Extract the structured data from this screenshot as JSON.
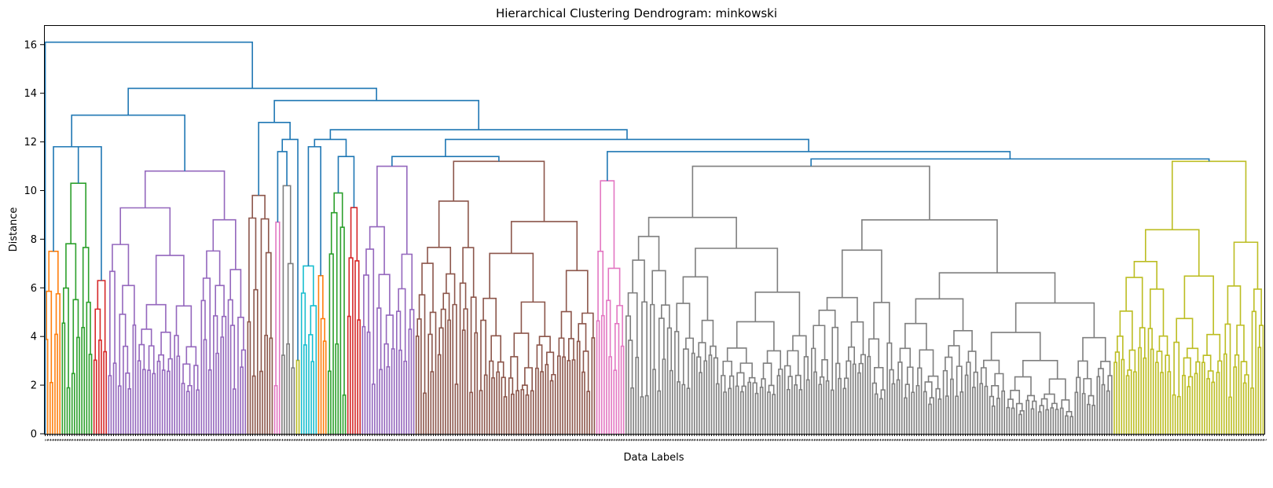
{
  "chart_data": {
    "type": "dendrogram",
    "title": "Hierarchical  Clustering Dendrogram: minkowski",
    "xlabel": "Data Labels",
    "ylabel": "Distance",
    "ylim": [
      0,
      16.8
    ],
    "yticks": [
      0,
      2,
      4,
      6,
      8,
      10,
      12,
      14,
      16
    ],
    "leaf_count": 500,
    "leaf_label_sample": "1",
    "link_color_default": "#1f77b4",
    "top_merges": [
      {
        "height": 16.1,
        "description": "root"
      },
      {
        "height": 14.2
      },
      {
        "height": 13.7
      },
      {
        "height": 13.3
      },
      {
        "height": 13.1
      },
      {
        "height": 12.5
      },
      {
        "height": 12.1
      },
      {
        "height": 11.8
      },
      {
        "height": 11.6
      },
      {
        "height": 11.4
      },
      {
        "height": 11.3
      }
    ],
    "clusters": [
      {
        "color": "#ff7f0e",
        "leaf_range": [
          0,
          6
        ],
        "height": 7.5
      },
      {
        "color": "#2ca02c",
        "leaf_range": [
          7,
          19
        ],
        "height": 10.3
      },
      {
        "color": "#d62728",
        "leaf_range": [
          20,
          25
        ],
        "height": 6.3
      },
      {
        "color": "#9467bd",
        "leaf_range": [
          26,
          82
        ],
        "height": 10.8
      },
      {
        "color": "#8c564b",
        "leaf_range": [
          83,
          93
        ],
        "height": 9.8
      },
      {
        "color": "#e377c2",
        "leaf_range": [
          94,
          96
        ],
        "height": 8.7
      },
      {
        "color": "#7f7f7f",
        "leaf_range": [
          97,
          102
        ],
        "height": 10.2
      },
      {
        "color": "#bcbd22",
        "leaf_range": [
          103,
          104
        ],
        "height": 8.4
      },
      {
        "color": "#17becf",
        "leaf_range": [
          105,
          111
        ],
        "height": 6.9
      },
      {
        "color": "#ff7f0e",
        "leaf_range": [
          112,
          115
        ],
        "height": 6.5
      },
      {
        "color": "#2ca02c",
        "leaf_range": [
          116,
          123
        ],
        "height": 9.9
      },
      {
        "color": "#d62728",
        "leaf_range": [
          124,
          129
        ],
        "height": 9.3
      },
      {
        "color": "#9467bd",
        "leaf_range": [
          130,
          151
        ],
        "height": 11.0
      },
      {
        "color": "#8c564b",
        "leaf_range": [
          152,
          225
        ],
        "height": 11.2
      },
      {
        "color": "#e377c2",
        "leaf_range": [
          226,
          237
        ],
        "height": 10.4
      },
      {
        "color": "#7f7f7f",
        "leaf_range": [
          238,
          437
        ],
        "height": 11.0
      },
      {
        "color": "#bcbd22",
        "leaf_range": [
          438,
          499
        ],
        "height": 11.2
      }
    ],
    "grid": false,
    "legend": "none"
  }
}
